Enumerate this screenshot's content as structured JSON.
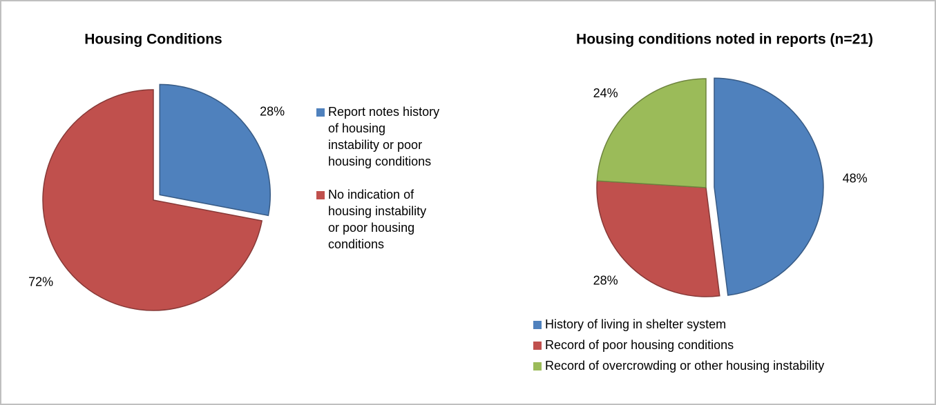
{
  "chart_data": [
    {
      "type": "pie",
      "title": "Housing Conditions",
      "categories": [
        "Report notes history of housing instability or poor housing conditions",
        "No indication of housing instability or poor housing conditions"
      ],
      "values": [
        28,
        72
      ],
      "value_labels": [
        "28%",
        "72%"
      ],
      "colors": [
        "#4f81bd",
        "#c0504d"
      ],
      "legend": "right"
    },
    {
      "type": "pie",
      "title": "Housing conditions noted in reports (n=21)",
      "categories": [
        "History of living in shelter system",
        "Record of poor housing conditions",
        "Record of overcrowding or other housing instability"
      ],
      "values": [
        48,
        28,
        24
      ],
      "value_labels": [
        "48%",
        "28%",
        "24%"
      ],
      "colors": [
        "#4f81bd",
        "#c0504d",
        "#9bbb59"
      ],
      "legend": "bottom"
    }
  ]
}
